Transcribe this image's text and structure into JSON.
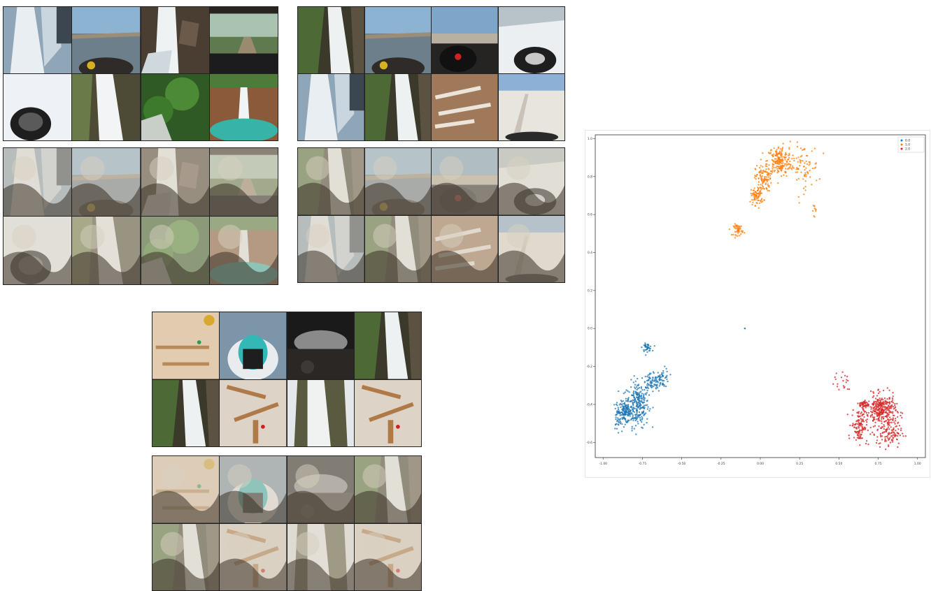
{
  "panels": [
    {
      "name": "panel-top-left-originals",
      "tiles": [
        "waterfall-ice",
        "jetski-sea",
        "waterfall-rocks",
        "car-forest-road",
        "snowmobile-snow",
        "waterfall-cliff",
        "waterfall-forest",
        "waterfall-pool"
      ]
    },
    {
      "name": "panel-top-left-reconstructions",
      "tiles": [
        "waterfall-ice-recon",
        "jetski-sea-recon",
        "waterfall-rocks-recon",
        "car-forest-road-recon",
        "snowmobile-snow-recon",
        "waterfall-cliff-recon",
        "waterfall-forest-recon",
        "waterfall-pool-recon"
      ]
    },
    {
      "name": "panel-top-middle-originals",
      "tiles": [
        "waterfall-green",
        "jetski-sea",
        "car-dashboard",
        "snowmobile-trail",
        "waterfall-ice",
        "waterfall-green",
        "marble-run-board",
        "snow-field"
      ]
    },
    {
      "name": "panel-top-middle-reconstructions",
      "tiles": [
        "waterfall-green-recon",
        "jetski-sea-recon",
        "car-dashboard-recon",
        "snowmobile-trail-recon",
        "waterfall-ice-recon",
        "waterfall-green-recon",
        "marble-run-board-recon",
        "snow-field-recon"
      ]
    },
    {
      "name": "panel-bottom-originals",
      "tiles": [
        "marble-run-pegboard",
        "jetski-rider",
        "car-night",
        "waterfall-green",
        "waterfall-green",
        "marble-run-table",
        "waterfall-snow",
        "marble-run-table"
      ]
    },
    {
      "name": "panel-bottom-reconstructions",
      "tiles": [
        "marble-run-pegboard-recon",
        "jetski-rider-recon",
        "car-night-recon",
        "waterfall-green-recon",
        "waterfall-green-recon",
        "marble-run-table-recon",
        "waterfall-snow-recon",
        "marble-run-table-recon"
      ]
    }
  ],
  "chart_data": {
    "type": "scatter",
    "title": "",
    "xlabel": "",
    "ylabel": "",
    "xlim": [
      -1.05,
      1.05
    ],
    "ylim": [
      -0.68,
      1.02
    ],
    "x_ticks": [
      "-1.00",
      "-0.75",
      "-0.50",
      "-0.25",
      "0.00",
      "0.25",
      "0.50",
      "0.75",
      "1.00"
    ],
    "y_ticks": [
      "-0.6",
      "-0.4",
      "-0.2",
      "0.0",
      "0.2",
      "0.4",
      "0.6",
      "0.8",
      "1.0"
    ],
    "legend": {
      "placement": "top-right",
      "entries": [
        {
          "label": "0.0",
          "color": "#1f77b4"
        },
        {
          "label": "1.0",
          "color": "#ff7f0e"
        },
        {
          "label": "2.0",
          "color": "#d62728"
        }
      ]
    },
    "grid": false,
    "series": [
      {
        "label": "0.0",
        "color": "#1f77b4",
        "clusters": [
          {
            "cx": -0.78,
            "cy": -0.4,
            "sx": 0.035,
            "sy": 0.06,
            "n": 260
          },
          {
            "cx": -0.86,
            "cy": -0.44,
            "sx": 0.02,
            "sy": 0.03,
            "n": 120
          },
          {
            "cx": -0.69,
            "cy": -0.29,
            "sx": 0.03,
            "sy": 0.025,
            "n": 70
          },
          {
            "cx": -0.62,
            "cy": -0.26,
            "sx": 0.02,
            "sy": 0.025,
            "n": 50
          },
          {
            "cx": -0.72,
            "cy": -0.1,
            "sx": 0.015,
            "sy": 0.01,
            "n": 40
          },
          {
            "cx": -0.91,
            "cy": -0.46,
            "sx": 0.012,
            "sy": 0.04,
            "n": 40
          },
          {
            "cx": -0.1,
            "cy": 0.0,
            "sx": 0.002,
            "sy": 0.002,
            "n": 2
          }
        ]
      },
      {
        "label": "1.0",
        "color": "#ff7f0e",
        "clusters": [
          {
            "cx": 0.12,
            "cy": 0.88,
            "sx": 0.04,
            "sy": 0.04,
            "n": 200
          },
          {
            "cx": 0.02,
            "cy": 0.79,
            "sx": 0.025,
            "sy": 0.035,
            "n": 100
          },
          {
            "cx": -0.02,
            "cy": 0.7,
            "sx": 0.02,
            "sy": 0.025,
            "n": 80
          },
          {
            "cx": 0.27,
            "cy": 0.85,
            "sx": 0.05,
            "sy": 0.06,
            "n": 80
          },
          {
            "cx": 0.35,
            "cy": 0.62,
            "sx": 0.01,
            "sy": 0.02,
            "n": 10
          },
          {
            "cx": -0.14,
            "cy": 0.52,
            "sx": 0.015,
            "sy": 0.015,
            "n": 50
          }
        ]
      },
      {
        "label": "2.0",
        "color": "#d62728",
        "clusters": [
          {
            "cx": 0.77,
            "cy": -0.43,
            "sx": 0.045,
            "sy": 0.04,
            "n": 300
          },
          {
            "cx": 0.63,
            "cy": -0.51,
            "sx": 0.025,
            "sy": 0.045,
            "n": 120
          },
          {
            "cx": 0.82,
            "cy": -0.55,
            "sx": 0.04,
            "sy": 0.04,
            "n": 120
          },
          {
            "cx": 0.66,
            "cy": -0.4,
            "sx": 0.015,
            "sy": 0.01,
            "n": 50
          },
          {
            "cx": 0.52,
            "cy": -0.28,
            "sx": 0.035,
            "sy": 0.04,
            "n": 20
          }
        ]
      }
    ]
  }
}
